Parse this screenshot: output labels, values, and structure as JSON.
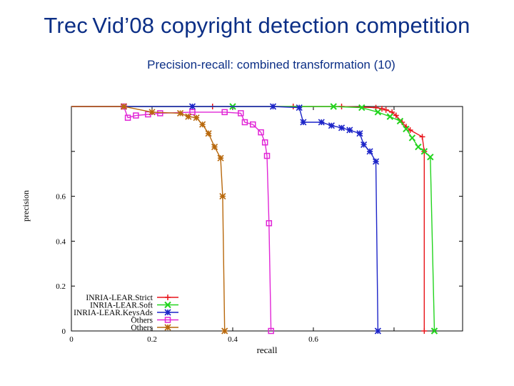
{
  "slide": {
    "title": "Trec Vid’08 copyright detection competition"
  },
  "chart_data": {
    "type": "line",
    "title": "Precision-recall: combined transformation (10)",
    "xlabel": "recall",
    "ylabel": "precision",
    "xlim": [
      0,
      0.97
    ],
    "ylim": [
      0,
      1.0
    ],
    "x_ticks": [
      0,
      0.2,
      0.4,
      0.6
    ],
    "y_ticks": [
      0,
      0.2,
      0.4,
      0.6
    ],
    "grid": false,
    "legend_position": "bottom-left",
    "series": [
      {
        "name": "INRIA-LEAR.Strict",
        "color": "#e8141a",
        "marker": "plus",
        "points": [
          [
            0,
            1.0
          ],
          [
            0.35,
            1.0
          ],
          [
            0.55,
            1.0
          ],
          [
            0.67,
            1.0
          ],
          [
            0.755,
            0.995
          ],
          [
            0.77,
            0.99
          ],
          [
            0.78,
            0.985
          ],
          [
            0.795,
            0.975
          ],
          [
            0.805,
            0.96
          ],
          [
            0.82,
            0.93
          ],
          [
            0.83,
            0.91
          ],
          [
            0.84,
            0.895
          ],
          [
            0.87,
            0.865
          ],
          [
            0.875,
            0.8
          ],
          [
            0.875,
            0.0
          ]
        ]
      },
      {
        "name": "INRIA-LEAR.Soft",
        "color": "#22d41e",
        "marker": "x",
        "points": [
          [
            0,
            1.0
          ],
          [
            0.4,
            1.0
          ],
          [
            0.65,
            1.0
          ],
          [
            0.72,
            0.995
          ],
          [
            0.76,
            0.975
          ],
          [
            0.79,
            0.955
          ],
          [
            0.815,
            0.935
          ],
          [
            0.83,
            0.9
          ],
          [
            0.845,
            0.86
          ],
          [
            0.86,
            0.82
          ],
          [
            0.875,
            0.8
          ],
          [
            0.89,
            0.775
          ],
          [
            0.9,
            0.0
          ]
        ]
      },
      {
        "name": "INRIA-LEAR.KeysAds",
        "color": "#1c24c8",
        "marker": "star",
        "points": [
          [
            0,
            1.0
          ],
          [
            0.3,
            1.0
          ],
          [
            0.5,
            1.0
          ],
          [
            0.565,
            0.995
          ],
          [
            0.575,
            0.93
          ],
          [
            0.62,
            0.93
          ],
          [
            0.645,
            0.915
          ],
          [
            0.67,
            0.905
          ],
          [
            0.69,
            0.895
          ],
          [
            0.715,
            0.88
          ],
          [
            0.725,
            0.83
          ],
          [
            0.74,
            0.8
          ],
          [
            0.755,
            0.755
          ],
          [
            0.76,
            0.0
          ]
        ]
      },
      {
        "name": "Others",
        "color": "#e126d6",
        "marker": "square",
        "points": [
          [
            0,
            1.0
          ],
          [
            0.13,
            1.0
          ],
          [
            0.14,
            0.95
          ],
          [
            0.16,
            0.96
          ],
          [
            0.19,
            0.965
          ],
          [
            0.22,
            0.97
          ],
          [
            0.3,
            0.975
          ],
          [
            0.38,
            0.975
          ],
          [
            0.42,
            0.97
          ],
          [
            0.43,
            0.93
          ],
          [
            0.45,
            0.92
          ],
          [
            0.47,
            0.885
          ],
          [
            0.48,
            0.84
          ],
          [
            0.485,
            0.78
          ],
          [
            0.49,
            0.48
          ],
          [
            0.495,
            0.0
          ]
        ]
      },
      {
        "name": "Others",
        "color": "#b8680c",
        "marker": "star",
        "points": [
          [
            0,
            1.0
          ],
          [
            0.13,
            1.0
          ],
          [
            0.2,
            0.975
          ],
          [
            0.27,
            0.97
          ],
          [
            0.29,
            0.955
          ],
          [
            0.31,
            0.95
          ],
          [
            0.325,
            0.92
          ],
          [
            0.34,
            0.88
          ],
          [
            0.355,
            0.82
          ],
          [
            0.37,
            0.77
          ],
          [
            0.375,
            0.6
          ],
          [
            0.38,
            0.0
          ]
        ]
      }
    ]
  }
}
